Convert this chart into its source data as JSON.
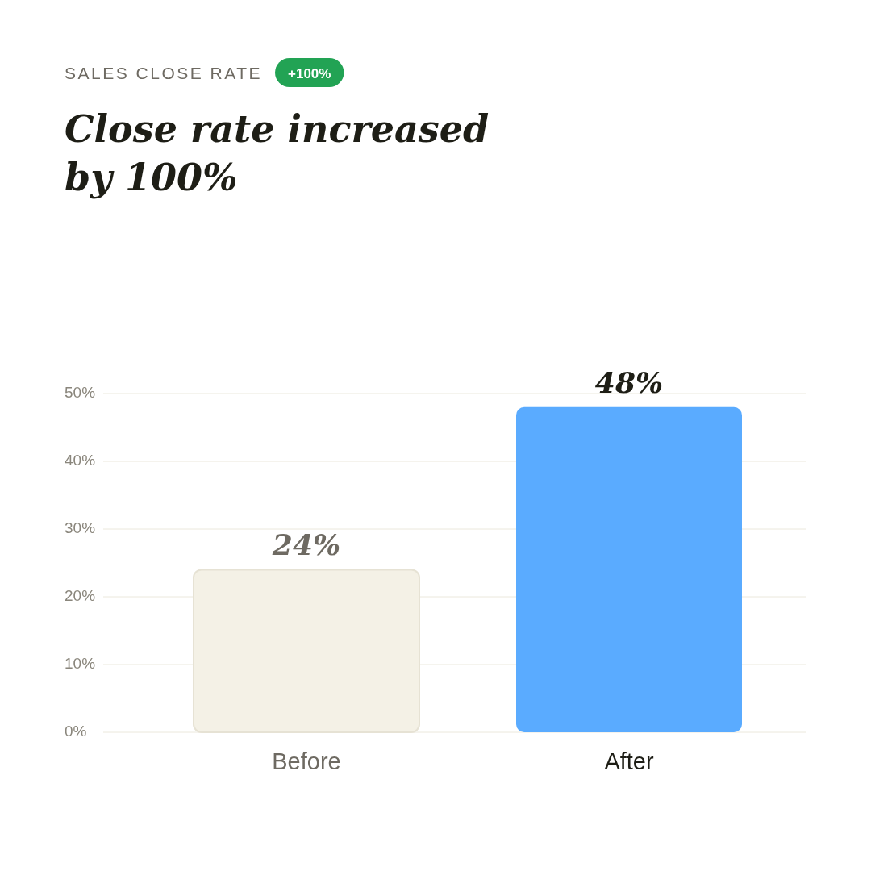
{
  "chart_data": {
    "type": "bar",
    "subtitle": "SALES CLOSE RATE",
    "title": "Close rate increased by 100%",
    "annotations": [
      "+100%"
    ],
    "categories": [
      "Before",
      "After"
    ],
    "values": [
      24,
      48
    ],
    "colors": [
      "#f4f1e6",
      "#5aabff"
    ],
    "value_labels": [
      "24%",
      "48%"
    ],
    "ylim": [
      0,
      50
    ],
    "yticks": [
      {
        "value": 0,
        "label": "0%"
      },
      {
        "value": 10,
        "label": "10%"
      },
      {
        "value": 20,
        "label": "20%"
      },
      {
        "value": 30,
        "label": "30%"
      },
      {
        "value": 40,
        "label": "40%"
      },
      {
        "value": 50,
        "label": "50%"
      }
    ],
    "grid": "y"
  }
}
